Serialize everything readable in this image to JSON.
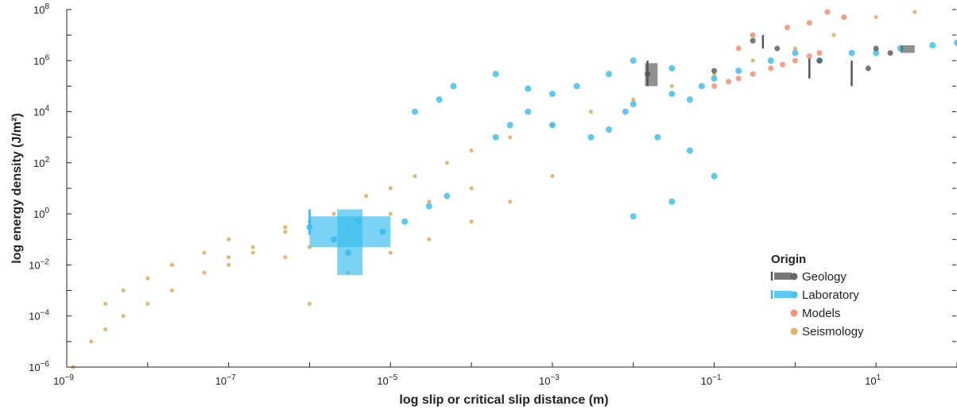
{
  "chart_data": {
    "type": "scatter",
    "xlabel": "log slip or critical slip distance (m)",
    "ylabel": "log energy density (J/m²)",
    "x_scale": "log",
    "y_scale": "log",
    "xlim": [
      1e-09,
      100
    ],
    "ylim": [
      1e-06,
      100000000.0
    ],
    "x_ticks": [
      {
        "base": "10",
        "exp": "−9"
      },
      {
        "base": "10",
        "exp": "−7"
      },
      {
        "base": "10",
        "exp": "−5"
      },
      {
        "base": "10",
        "exp": "−3"
      },
      {
        "base": "10",
        "exp": "−1"
      },
      {
        "base": "10",
        "exp": "1"
      }
    ],
    "y_ticks": [
      {
        "base": "10",
        "exp": "−6"
      },
      {
        "base": "10",
        "exp": "−4"
      },
      {
        "base": "10",
        "exp": "−2"
      },
      {
        "base": "10",
        "exp": "0"
      },
      {
        "base": "10",
        "exp": "2"
      },
      {
        "base": "10",
        "exp": "4"
      },
      {
        "base": "10",
        "exp": "6"
      },
      {
        "base": "10",
        "exp": "8"
      }
    ],
    "grid": false,
    "legend_position": "bottom-right",
    "legend_title": "Origin",
    "series": [
      {
        "name": "Geology",
        "color": "#555555",
        "points": [
          [
            0.015,
            300000.0
          ],
          [
            0.1,
            400000.0
          ],
          [
            0.3,
            6000000.0
          ],
          [
            0.6,
            3000000.0
          ],
          [
            2,
            1000000.0
          ],
          [
            8,
            500000.0
          ],
          [
            10,
            3000000.0
          ],
          [
            15,
            2000000.0
          ]
        ],
        "ranges": [
          [
            0.015,
            100000.0,
            1000000.0
          ],
          [
            0.4,
            3000000.0,
            10000000.0
          ],
          [
            1.5,
            200000.0,
            1200000.0
          ],
          [
            5,
            100000.0,
            1000000.0
          ]
        ],
        "boxes": [
          [
            0.014,
            0.02,
            100000.0,
            800000.0
          ],
          [
            20,
            30,
            2000000.0,
            4000000.0
          ]
        ]
      },
      {
        "name": "Laboratory",
        "color": "#33bbee",
        "points": [
          [
            1e-06,
            0.3
          ],
          [
            2e-06,
            0.1
          ],
          [
            3e-06,
            0.03
          ],
          [
            4e-06,
            0.5
          ],
          [
            8e-06,
            0.2
          ],
          [
            1.5e-05,
            0.5
          ],
          [
            3e-05,
            2
          ],
          [
            5e-05,
            5
          ],
          [
            0.0002,
            1000.0
          ],
          [
            0.0003,
            3000.0
          ],
          [
            0.0005,
            10000.0
          ],
          [
            0.001,
            3000.0
          ],
          [
            0.003,
            1000.0
          ],
          [
            0.005,
            2000.0
          ],
          [
            0.008,
            10000.0
          ],
          [
            0.01,
            0.8
          ],
          [
            0.01,
            20000.0
          ],
          [
            0.03,
            50000.0
          ],
          [
            0.05,
            30000.0
          ],
          [
            0.07,
            100000.0
          ],
          [
            0.1,
            200000.0
          ],
          [
            0.2,
            400000.0
          ],
          [
            0.5,
            1000000.0
          ],
          [
            1,
            2000000.0
          ],
          [
            2,
            1000000.0
          ],
          [
            5,
            2000000.0
          ],
          [
            10,
            2000000.0
          ],
          [
            20,
            3000000.0
          ],
          [
            50,
            4000000.0
          ],
          [
            100,
            5000000.0
          ],
          [
            2e-05,
            10000.0
          ],
          [
            4e-05,
            30000.0
          ],
          [
            6e-05,
            100000.0
          ],
          [
            0.0002,
            300000.0
          ],
          [
            0.0005,
            80000.0
          ],
          [
            0.001,
            50000.0
          ],
          [
            0.002,
            100000.0
          ],
          [
            0.005,
            300000.0
          ],
          [
            0.01,
            1000000.0
          ],
          [
            0.03,
            500000.0
          ],
          [
            0.02,
            1000.0
          ],
          [
            0.05,
            300
          ],
          [
            0.1,
            30
          ],
          [
            0.03,
            3
          ]
        ],
        "ranges": [
          [
            1e-06,
            0.15,
            1.5
          ]
        ],
        "boxes": [
          [
            1e-06,
            1e-05,
            0.05,
            0.8
          ],
          [
            2.2e-06,
            4.5e-06,
            0.004,
            1.5
          ]
        ]
      },
      {
        "name": "Models",
        "color": "#ee8866",
        "points": [
          [
            0.1,
            100000.0
          ],
          [
            0.15,
            150000.0
          ],
          [
            0.2,
            200000.0
          ],
          [
            0.3,
            300000.0
          ],
          [
            0.5,
            500000.0
          ],
          [
            0.7,
            700000.0
          ],
          [
            1,
            1000000.0
          ],
          [
            1.5,
            1500000.0
          ],
          [
            2,
            2000000.0
          ],
          [
            0.3,
            10000000.0
          ],
          [
            0.8,
            20000000.0
          ],
          [
            1.5,
            30000000.0
          ],
          [
            2.5,
            80000000.0
          ],
          [
            4,
            50000000.0
          ],
          [
            0.2,
            3000000.0
          ]
        ]
      },
      {
        "name": "Seismology",
        "color": "#ddaa55",
        "points": [
          [
            1.2e-09,
            1e-06
          ],
          [
            2e-09,
            1e-05
          ],
          [
            3e-09,
            3e-05
          ],
          [
            5e-09,
            0.0001
          ],
          [
            1e-08,
            0.0003
          ],
          [
            2e-08,
            0.001
          ],
          [
            5e-08,
            0.005
          ],
          [
            1e-07,
            0.02
          ],
          [
            2e-07,
            0.05
          ],
          [
            5e-07,
            0.2
          ],
          [
            3e-09,
            0.0003
          ],
          [
            5e-09,
            0.001
          ],
          [
            1e-08,
            0.003
          ],
          [
            2e-08,
            0.01
          ],
          [
            5e-08,
            0.03
          ],
          [
            1e-07,
            0.1
          ],
          [
            1e-07,
            0.01
          ],
          [
            2e-07,
            0.03
          ],
          [
            5e-07,
            0.3
          ],
          [
            1e-06,
            0.5
          ],
          [
            2e-06,
            1
          ],
          [
            5e-06,
            5
          ],
          [
            1e-05,
            10
          ],
          [
            2e-05,
            30
          ],
          [
            5e-05,
            100
          ],
          [
            0.0001,
            300
          ],
          [
            0.0003,
            1000.0
          ],
          [
            0.001,
            3000.0
          ],
          [
            0.003,
            10000.0
          ],
          [
            0.01,
            30000.0
          ],
          [
            0.03,
            100000.0
          ],
          [
            0.1,
            300000.0
          ],
          [
            0.3,
            1000000.0
          ],
          [
            1,
            3000000.0
          ],
          [
            3,
            10000000.0
          ],
          [
            10,
            50000000.0
          ],
          [
            30,
            80000000.0
          ],
          [
            5e-07,
            0.02
          ],
          [
            1e-06,
            0.05
          ],
          [
            3e-06,
            0.3
          ],
          [
            1e-05,
            1
          ],
          [
            3e-05,
            3
          ],
          [
            0.0001,
            10
          ],
          [
            3e-06,
            0.005
          ],
          [
            1e-05,
            0.03
          ],
          [
            3e-05,
            0.1
          ],
          [
            0.0001,
            0.5
          ],
          [
            0.0003,
            3
          ],
          [
            0.001,
            30
          ],
          [
            1e-06,
            0.0003
          ]
        ]
      }
    ]
  }
}
